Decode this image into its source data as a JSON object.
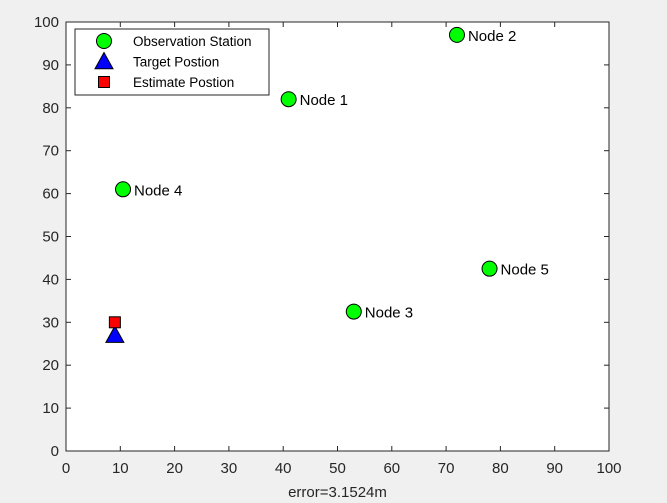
{
  "chart_data": {
    "type": "scatter",
    "title": "",
    "xlabel": "error=3.1524m",
    "ylabel": "",
    "xlim": [
      0,
      100
    ],
    "ylim": [
      0,
      100
    ],
    "xticks": [
      0,
      10,
      20,
      30,
      40,
      50,
      60,
      70,
      80,
      90,
      100
    ],
    "yticks": [
      0,
      10,
      20,
      30,
      40,
      50,
      60,
      70,
      80,
      90,
      100
    ],
    "grid": false,
    "legend_position": "top-left",
    "legend": [
      {
        "label": "Observation Station",
        "marker": "circle",
        "color": "#00ff00"
      },
      {
        "label": "Target Postion",
        "marker": "triangle",
        "color": "#0000ff"
      },
      {
        "label": "Estimate Postion",
        "marker": "square",
        "color": "#ff0000"
      }
    ],
    "series": [
      {
        "name": "Observation Station",
        "marker": "circle",
        "color": "#00ff00",
        "points": [
          {
            "x": 41,
            "y": 82,
            "label": "Node 1"
          },
          {
            "x": 72,
            "y": 97,
            "label": "Node 2"
          },
          {
            "x": 53,
            "y": 32.5,
            "label": "Node 3"
          },
          {
            "x": 10.5,
            "y": 61,
            "label": "Node 4"
          },
          {
            "x": 78,
            "y": 42.5,
            "label": "Node 5"
          }
        ]
      },
      {
        "name": "Target Postion",
        "marker": "triangle",
        "color": "#0000ff",
        "points": [
          {
            "x": 9,
            "y": 27
          }
        ]
      },
      {
        "name": "Estimate Postion",
        "marker": "square",
        "color": "#ff0000",
        "points": [
          {
            "x": 9,
            "y": 30
          }
        ]
      }
    ]
  }
}
